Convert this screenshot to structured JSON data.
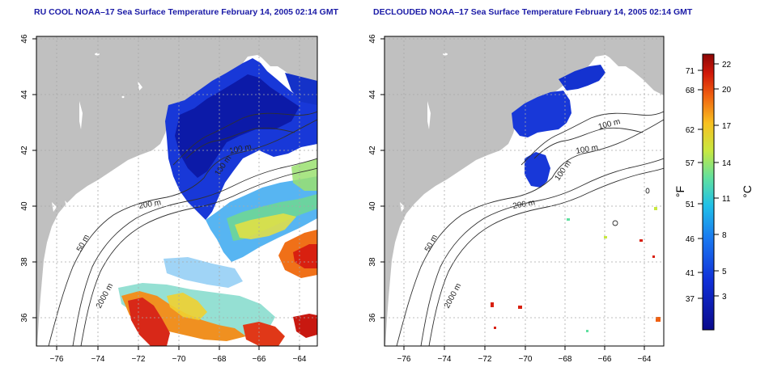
{
  "left_map": {
    "title": "RU COOL NOAA–17 Sea Surface Temperature February 14, 2005 02:14 GMT",
    "contour_labels": [
      "50 m",
      "100 m",
      "200 m",
      "2000 m",
      "100 m"
    ]
  },
  "right_map": {
    "title": "DECLOUDED NOAA–17 Sea Surface Temperature February 14, 2005 02:14 GMT",
    "contour_labels": [
      "50 m",
      "100 m",
      "200 m",
      "2000 m",
      "100 m",
      "100 m"
    ]
  },
  "lon_ticks": [
    "−76",
    "−74",
    "−72",
    "−70",
    "−68",
    "−66",
    "−64"
  ],
  "lat_ticks": [
    "36",
    "38",
    "40",
    "42",
    "44",
    "46"
  ],
  "colorbar": {
    "f_label": "°F",
    "c_label": "°C",
    "f_ticks": [
      "71",
      "68",
      "62",
      "57",
      "51",
      "46",
      "41",
      "37"
    ],
    "c_ticks": [
      "22",
      "20",
      "17",
      "14",
      "11",
      "8",
      "5",
      "3"
    ],
    "colors": [
      "#0a0a8c",
      "#1030d8",
      "#1a78f0",
      "#20c0e8",
      "#60e0a0",
      "#c8e840",
      "#f8c020",
      "#f06010",
      "#d01808",
      "#8c0606"
    ]
  },
  "colors": {
    "land": "#c0c0c0",
    "contour": "#303030",
    "grid": "#a8a8a8",
    "title": "#1a1aa6"
  }
}
